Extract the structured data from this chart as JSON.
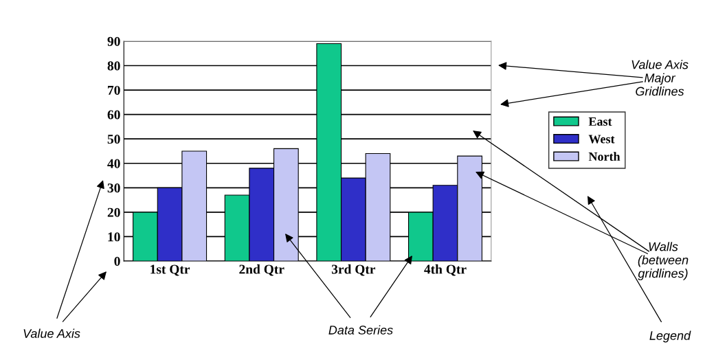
{
  "chart_data": {
    "type": "bar",
    "categories": [
      "1st Qtr",
      "2nd Qtr",
      "3rd Qtr",
      "4th Qtr"
    ],
    "series": [
      {
        "name": "East",
        "color": "#10c88c",
        "values": [
          20,
          27,
          89,
          20
        ]
      },
      {
        "name": "West",
        "color": "#2f2fc8",
        "values": [
          30,
          38,
          34,
          31
        ]
      },
      {
        "name": "North",
        "color": "#c4c6f4",
        "values": [
          45,
          46,
          44,
          43
        ]
      }
    ],
    "ylim": [
      0,
      90
    ],
    "yticks": [
      0,
      10,
      20,
      30,
      40,
      50,
      60,
      70,
      80,
      90
    ],
    "grid": "y",
    "legend": "right",
    "annotations": [
      "Value Axis\nMajor\nGridlines",
      "Walls\n(between\ngridlines)",
      "Legend",
      "Data Series",
      "Value Axis"
    ]
  }
}
